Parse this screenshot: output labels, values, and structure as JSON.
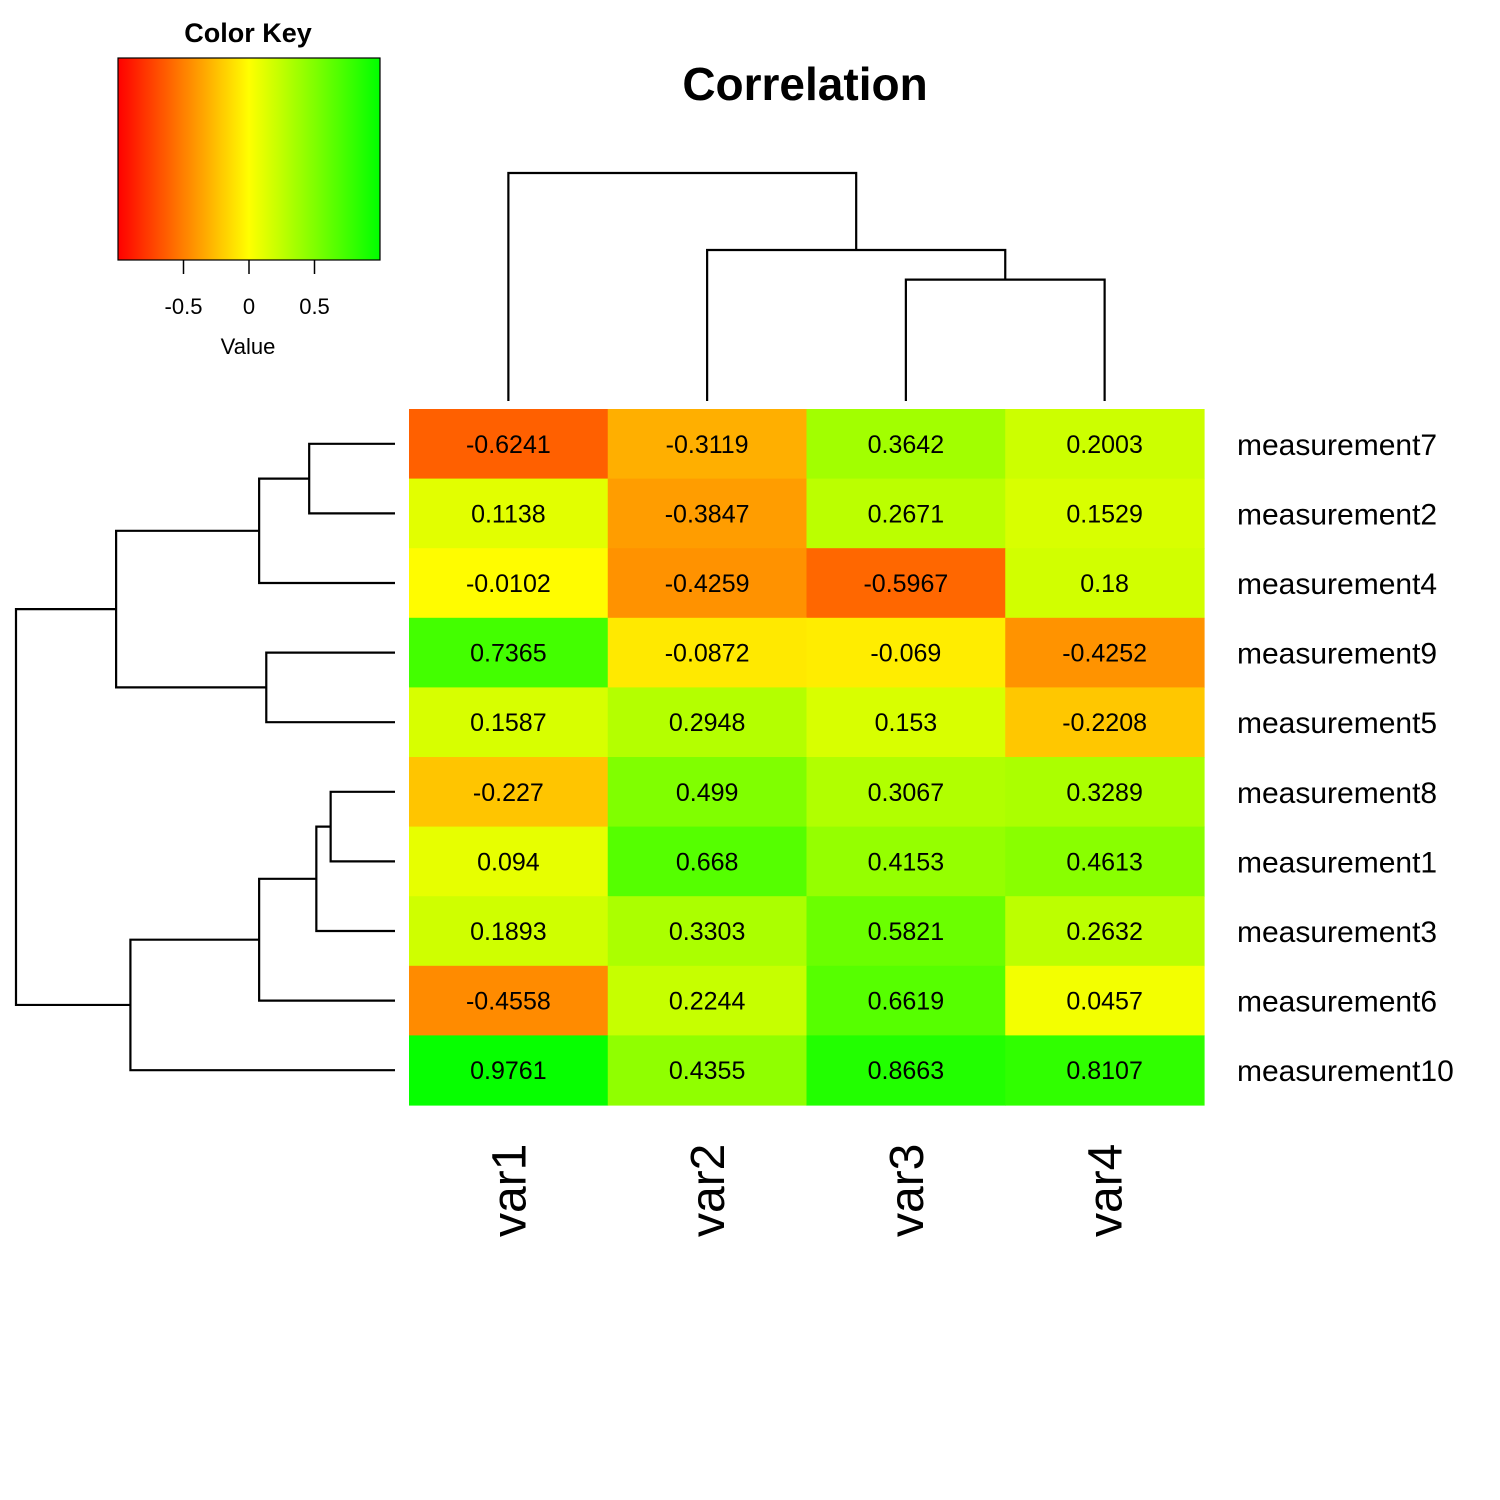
{
  "chart_data": {
    "type": "heatmap",
    "title": "Correlation",
    "columns": [
      "var1",
      "var2",
      "var3",
      "var4"
    ],
    "rows": [
      "measurement7",
      "measurement2",
      "measurement4",
      "measurement9",
      "measurement5",
      "measurement8",
      "measurement1",
      "measurement3",
      "measurement6",
      "measurement10"
    ],
    "values": [
      [
        -0.6241,
        -0.3119,
        0.3642,
        0.2003
      ],
      [
        0.1138,
        -0.3847,
        0.2671,
        0.1529
      ],
      [
        -0.0102,
        -0.4259,
        -0.5967,
        0.18
      ],
      [
        0.7365,
        -0.0872,
        -0.069,
        -0.4252
      ],
      [
        0.1587,
        0.2948,
        0.153,
        -0.2208
      ],
      [
        -0.227,
        0.499,
        0.3067,
        0.3289
      ],
      [
        0.094,
        0.668,
        0.4153,
        0.4613
      ],
      [
        0.1893,
        0.3303,
        0.5821,
        0.2632
      ],
      [
        -0.4558,
        0.2244,
        0.6619,
        0.0457
      ],
      [
        0.9761,
        0.4355,
        0.8663,
        0.8107
      ]
    ],
    "cell_labels": [
      [
        "-0.6241",
        "-0.3119",
        "0.3642",
        "0.2003"
      ],
      [
        "0.1138",
        "-0.3847",
        "0.2671",
        "0.1529"
      ],
      [
        "-0.0102",
        "-0.4259",
        "-0.5967",
        "0.18"
      ],
      [
        "0.7365",
        "-0.0872",
        "-0.069",
        "-0.4252"
      ],
      [
        "0.1587",
        "0.2948",
        "0.153",
        "-0.2208"
      ],
      [
        "-0.227",
        "0.499",
        "0.3067",
        "0.3289"
      ],
      [
        "0.094",
        "0.668",
        "0.4153",
        "0.4613"
      ],
      [
        "0.1893",
        "0.3303",
        "0.5821",
        "0.2632"
      ],
      [
        "-0.4558",
        "0.2244",
        "0.6619",
        "0.0457"
      ],
      [
        "0.9761",
        "0.4355",
        "0.8663",
        "0.8107"
      ]
    ],
    "color_scale": {
      "low": "#ff0000",
      "mid": "#ffff00",
      "high": "#00ff00",
      "range": [
        -1,
        1
      ]
    },
    "color_key": {
      "title": "Color Key",
      "xlabel": "Value",
      "ticks": [
        -0.5,
        0,
        0.5
      ],
      "tick_labels": [
        "-0.5",
        "0",
        "0.5"
      ]
    },
    "row_dendrogram": [
      {
        "children": [
          "measurement7",
          "measurement2"
        ],
        "height": 0.12
      },
      {
        "children": [
          0,
          "measurement4"
        ],
        "height": 0.19
      },
      {
        "children": [
          "measurement9",
          "measurement5"
        ],
        "height": 0.18
      },
      {
        "children": [
          1,
          2
        ],
        "height": 0.39
      },
      {
        "children": [
          "measurement8",
          "measurement1"
        ],
        "height": 0.09
      },
      {
        "children": [
          4,
          "measurement3"
        ],
        "height": 0.11
      },
      {
        "children": [
          5,
          "measurement6"
        ],
        "height": 0.19
      },
      {
        "children": [
          6,
          "measurement10"
        ],
        "height": 0.37
      },
      {
        "children": [
          3,
          7
        ],
        "height": 0.53
      }
    ],
    "column_dendrogram": [
      {
        "children": [
          "var3",
          "var4"
        ],
        "height": 0.41
      },
      {
        "children": [
          "var2",
          0
        ],
        "height": 0.51
      },
      {
        "children": [
          "var1",
          1
        ],
        "height": 0.77
      }
    ]
  }
}
